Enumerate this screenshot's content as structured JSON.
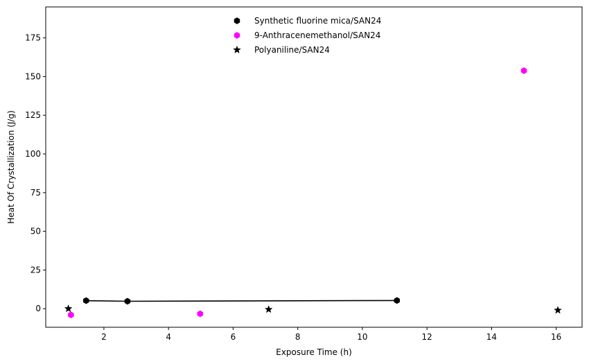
{
  "chart_data": {
    "type": "scatter",
    "title": "",
    "xlabel": "Exposure Time (h)",
    "ylabel": "Heat Of Crystallization (J/g)",
    "xlim": [
      0.2,
      16.8
    ],
    "ylim": [
      -12,
      195
    ],
    "xticks": [
      2,
      4,
      6,
      8,
      10,
      12,
      14,
      16
    ],
    "yticks": [
      0,
      25,
      50,
      75,
      100,
      125,
      150,
      175
    ],
    "grid": false,
    "legend_position": "top-center",
    "series": [
      {
        "name": "Synthetic fluorine mica/SAN24",
        "marker": "hexagon",
        "color": "#000000",
        "connected": true,
        "x": [
          1.45,
          2.73,
          11.07
        ],
        "y": [
          5.2,
          4.8,
          5.3
        ]
      },
      {
        "name": "9-Anthracenemethanol/SAN24",
        "marker": "hexagon",
        "color": "#ff00ff",
        "connected": false,
        "x": [
          0.98,
          4.98,
          15.0
        ],
        "y": [
          -4.0,
          -3.3,
          153.8
        ]
      },
      {
        "name": "Polyaniline/SAN24",
        "marker": "star",
        "color": "#000000",
        "connected": false,
        "x": [
          0.9,
          7.1,
          16.05
        ],
        "y": [
          0.0,
          -0.5,
          -1.0
        ]
      }
    ]
  }
}
